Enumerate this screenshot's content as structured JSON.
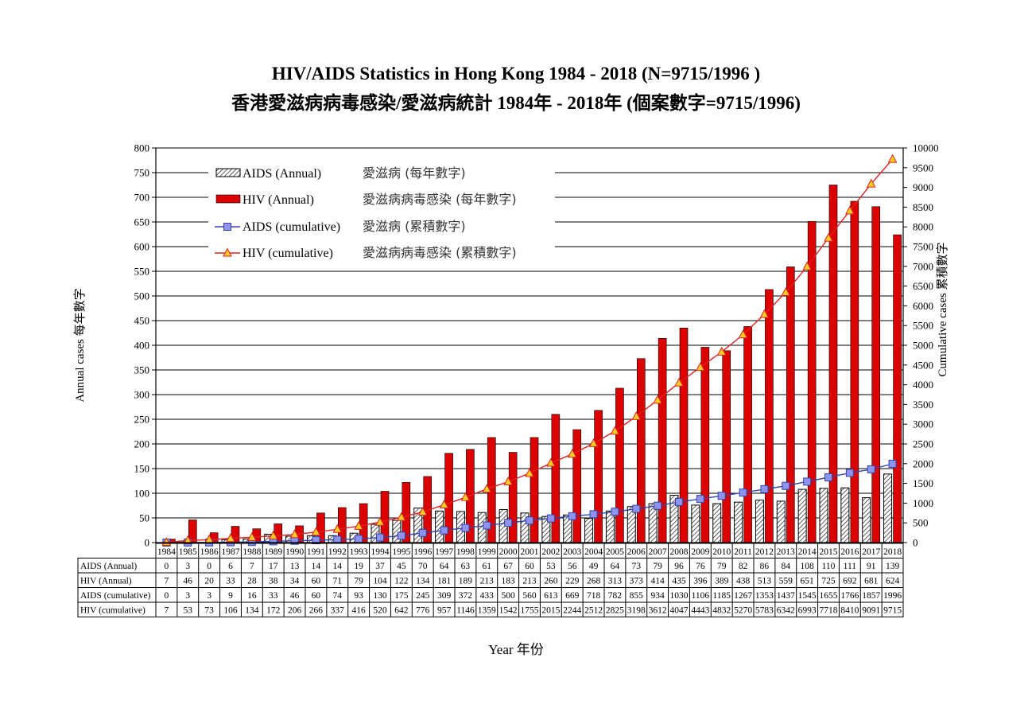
{
  "title": "HIV/AIDS Statistics in Hong Kong 1984 - 2018 (N=9715/1996 )",
  "subtitle": "香港愛滋病病毒感染/愛滋病統計 1984年 - 2018年 (個案數字=9715/1996)",
  "chart_data": {
    "type": "bar",
    "categories": [
      "1984",
      "1985",
      "1986",
      "1987",
      "1988",
      "1989",
      "1990",
      "1991",
      "1992",
      "1993",
      "1994",
      "1995",
      "1996",
      "1997",
      "1998",
      "1999",
      "2000",
      "2001",
      "2002",
      "2003",
      "2004",
      "2005",
      "2006",
      "2007",
      "2008",
      "2009",
      "2010",
      "2011",
      "2012",
      "2013",
      "2014",
      "2015",
      "2016",
      "2017",
      "2018"
    ],
    "series": [
      {
        "name": "AIDS (Annual)",
        "name_zh": "愛滋病 (每年數字)",
        "table_label": "AIDS (Annual)",
        "type": "bar",
        "axis": "left",
        "pattern": "hatched",
        "values": [
          0,
          3,
          0,
          6,
          7,
          17,
          13,
          14,
          14,
          19,
          37,
          45,
          70,
          64,
          63,
          61,
          67,
          60,
          53,
          56,
          49,
          64,
          73,
          79,
          96,
          76,
          79,
          82,
          86,
          84,
          108,
          110,
          111,
          91,
          139
        ]
      },
      {
        "name": "HIV (Annual)",
        "name_zh": "愛滋病病毒感染 (每年數字)",
        "table_label": "HIV (Annual)",
        "type": "bar",
        "axis": "left",
        "color": "#dd0000",
        "values": [
          7,
          46,
          20,
          33,
          28,
          38,
          34,
          60,
          71,
          79,
          104,
          122,
          134,
          181,
          189,
          213,
          183,
          213,
          260,
          229,
          268,
          313,
          373,
          414,
          435,
          396,
          389,
          438,
          513,
          559,
          651,
          725,
          692,
          681,
          624
        ]
      },
      {
        "name": "AIDS (cumulative)",
        "name_zh": "愛滋病 (累積數字)",
        "table_label": "AIDS (cumulative)",
        "type": "line",
        "axis": "right",
        "color": "#3344aa",
        "marker": "square",
        "marker_color": "#8f93ee",
        "values": [
          0,
          3,
          3,
          9,
          16,
          33,
          46,
          60,
          74,
          93,
          130,
          175,
          245,
          309,
          372,
          433,
          500,
          560,
          613,
          669,
          718,
          782,
          855,
          934,
          1030,
          1106,
          1185,
          1267,
          1353,
          1437,
          1545,
          1655,
          1766,
          1857,
          1996
        ]
      },
      {
        "name": "HIV (cumulative)",
        "name_zh": "愛滋病病毒感染 (累積數字)",
        "table_label": "HIV (cumulative)",
        "type": "line",
        "axis": "right",
        "color": "#dd2222",
        "marker": "triangle",
        "marker_color": "#ffcc22",
        "values": [
          7,
          53,
          73,
          106,
          134,
          172,
          206,
          266,
          337,
          416,
          520,
          642,
          776,
          957,
          1146,
          1359,
          1542,
          1755,
          2015,
          2244,
          2512,
          2825,
          3198,
          3612,
          4047,
          4443,
          4832,
          5270,
          5783,
          6342,
          6993,
          7718,
          8410,
          9091,
          9715
        ]
      }
    ],
    "y_left": {
      "label": "Annual cases",
      "label_zh": "每年數字",
      "min": 0,
      "max": 800,
      "step": 50
    },
    "y_right": {
      "label": "Cumulative cases",
      "label_zh": "累積數字",
      "min": 0,
      "max": 10000,
      "step": 500
    },
    "xlabel": "Year 年份",
    "grid": "horizontal",
    "legend_position": "top-left"
  }
}
